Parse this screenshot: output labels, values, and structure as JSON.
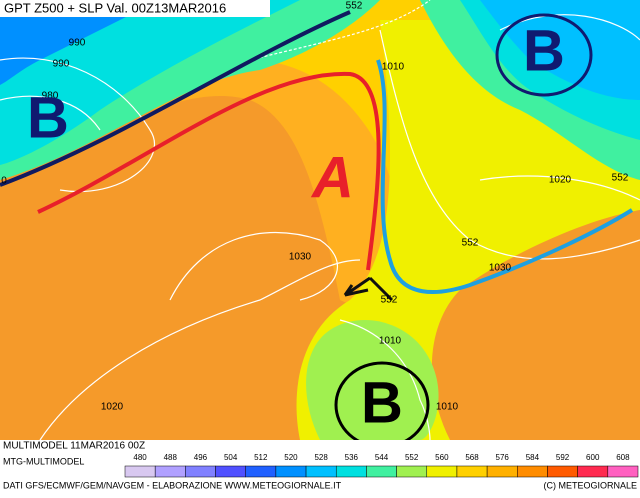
{
  "header": {
    "title": "GPT Z500 + SLP Val. 00Z13MAR2016"
  },
  "contour_labels": [
    990,
    990,
    980,
    552,
    1010,
    1020,
    552,
    0,
    552,
    1030,
    1030,
    552,
    1010,
    1010,
    1020
  ],
  "pressure_centers": [
    "B",
    "B",
    "A",
    "B"
  ],
  "footer": {
    "run": "MULTIMODEL 11MAR2016 00Z",
    "model": "MTG-MULTIMODEL",
    "credits": "DATI GFS/ECMWF/GEM/NAVGEM - ELABORAZIONE WWW.METEOGIORNALE.IT",
    "copyright": "(C) METEOGIORNALE"
  },
  "colorbar": {
    "ticks": [
      480,
      488,
      496,
      504,
      512,
      520,
      528,
      536,
      544,
      552,
      560,
      568,
      576,
      584,
      592,
      600,
      608
    ],
    "colors": [
      "#d8c8f0",
      "#b0a0ff",
      "#8080ff",
      "#5050ff",
      "#2060ff",
      "#0090ff",
      "#00c0ff",
      "#00e0e0",
      "#40f0a0",
      "#a0f050",
      "#f0f000",
      "#ffd000",
      "#ffb000",
      "#ff8c00",
      "#ff5a00",
      "#ff2a50",
      "#ff60c0"
    ]
  }
}
